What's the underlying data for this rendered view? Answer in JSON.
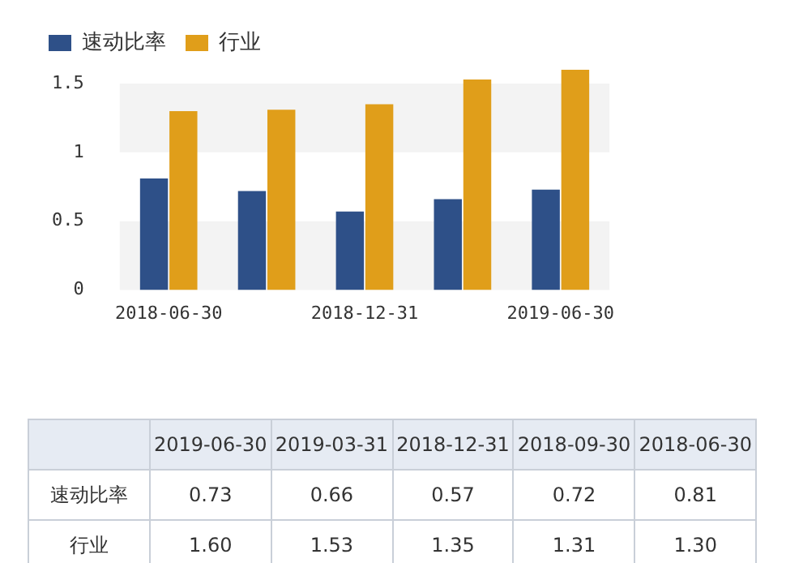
{
  "chart_data": [
    {
      "type": "bar",
      "categories": [
        "2018-06-30",
        null,
        "2018-12-31",
        null,
        "2019-06-30"
      ],
      "series": [
        {
          "name": "速动比率",
          "color": "#2e5088",
          "values": [
            0.81,
            0.72,
            0.57,
            0.66,
            0.73
          ]
        },
        {
          "name": "行业",
          "color": "#e09e1a",
          "values": [
            1.3,
            1.31,
            1.35,
            1.53,
            1.6
          ]
        }
      ],
      "ylim": [
        0,
        1.6
      ],
      "yticks": [
        0,
        0.5,
        1,
        1.5
      ],
      "legend": "top left"
    },
    {
      "type": "other",
      "categories": [
        "2019-06-30",
        "2019-03-31",
        "2018-12-31",
        "2018-09-30",
        "2018-06-30"
      ],
      "series": [
        {
          "name": "速动比率",
          "values": [
            0.73,
            0.66,
            0.57,
            0.72,
            0.81
          ],
          "value_labels": [
            "0.73",
            "0.66",
            "0.57",
            "0.72",
            "0.81"
          ]
        },
        {
          "name": "行业",
          "values": [
            1.6,
            1.53,
            1.35,
            1.31,
            1.3
          ],
          "value_labels": [
            "1.60",
            "1.53",
            "1.35",
            "1.31",
            "1.30"
          ]
        }
      ]
    }
  ]
}
